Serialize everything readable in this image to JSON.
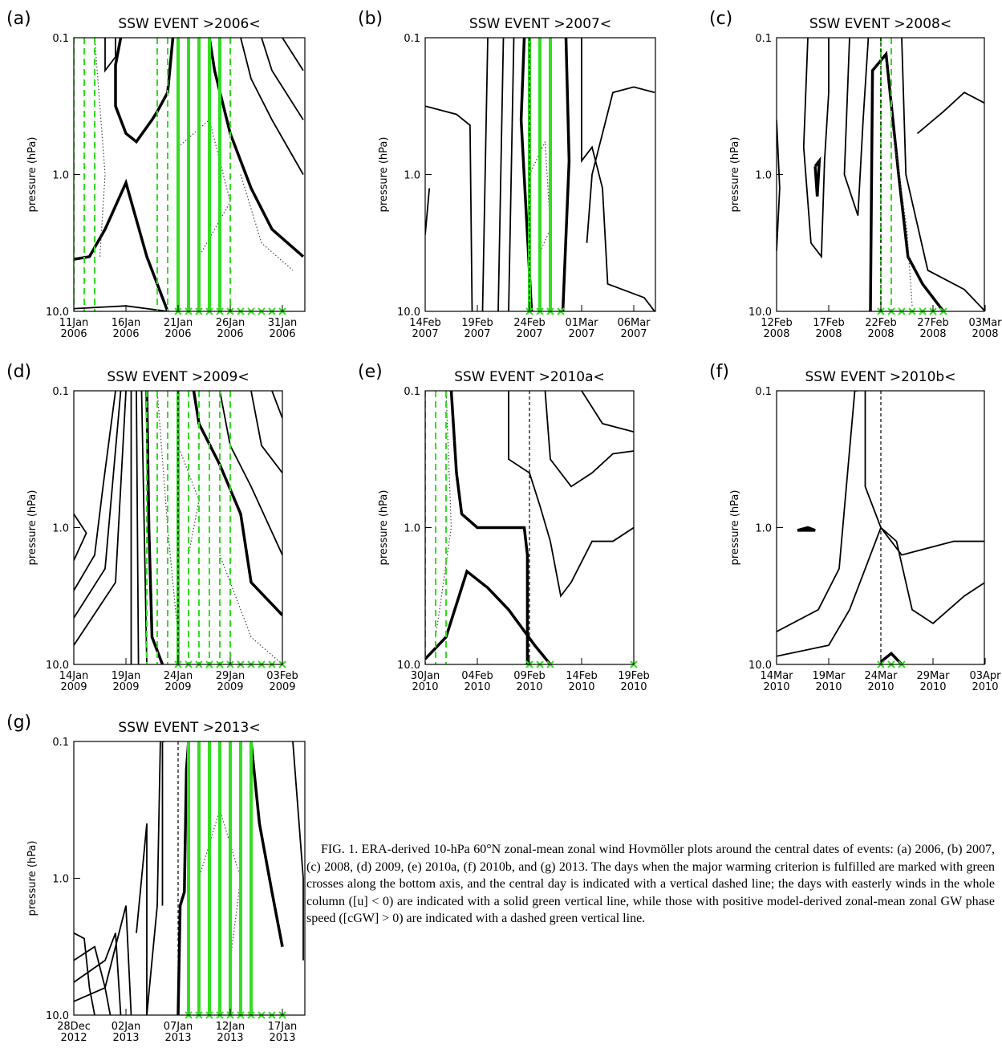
{
  "panels": [
    {
      "label": "(a)",
      "title": "SSW EVENT >2006<",
      "y_axis_label": "pressure (hPa)",
      "y_ticks": [
        "0.1",
        "1.0",
        "10.0"
      ],
      "x_ticks": [
        {
          "day": "11Jan",
          "year": "2006"
        },
        {
          "day": "16Jan",
          "year": "2006"
        },
        {
          "day": "21Jan",
          "year": "2006"
        },
        {
          "day": "26Jan",
          "year": "2006"
        },
        {
          "day": "31Jan",
          "year": "2006"
        }
      ]
    },
    {
      "label": "(b)",
      "title": "SSW EVENT >2007<",
      "y_axis_label": "pressure (hPa)",
      "y_ticks": [
        "0.1",
        "1.0",
        "10.0"
      ],
      "x_ticks": [
        {
          "day": "14Feb",
          "year": "2007"
        },
        {
          "day": "19Feb",
          "year": "2007"
        },
        {
          "day": "24Feb",
          "year": "2007"
        },
        {
          "day": "01Mar",
          "year": "2007"
        },
        {
          "day": "06Mar",
          "year": "2007"
        }
      ]
    },
    {
      "label": "(c)",
      "title": "SSW EVENT >2008<",
      "y_axis_label": "pressure (hPa)",
      "y_ticks": [
        "0.1",
        "1.0",
        "10.0"
      ],
      "x_ticks": [
        {
          "day": "12Feb",
          "year": "2008"
        },
        {
          "day": "17Feb",
          "year": "2008"
        },
        {
          "day": "22Feb",
          "year": "2008"
        },
        {
          "day": "27Feb",
          "year": "2008"
        },
        {
          "day": "03Mar",
          "year": "2008"
        }
      ]
    },
    {
      "label": "(d)",
      "title": "SSW EVENT >2009<",
      "y_axis_label": "pressure (hPa)",
      "y_ticks": [
        "0.1",
        "1.0",
        "10.0"
      ],
      "x_ticks": [
        {
          "day": "14Jan",
          "year": "2009"
        },
        {
          "day": "19Jan",
          "year": "2009"
        },
        {
          "day": "24Jan",
          "year": "2009"
        },
        {
          "day": "29Jan",
          "year": "2009"
        },
        {
          "day": "03Feb",
          "year": "2009"
        }
      ]
    },
    {
      "label": "(e)",
      "title": "SSW EVENT >2010a<",
      "y_axis_label": "pressure (hPa)",
      "y_ticks": [
        "0.1",
        "1.0",
        "10.0"
      ],
      "x_ticks": [
        {
          "day": "30Jan",
          "year": "2010"
        },
        {
          "day": "04Feb",
          "year": "2010"
        },
        {
          "day": "09Feb",
          "year": "2010"
        },
        {
          "day": "14Feb",
          "year": "2010"
        },
        {
          "day": "19Feb",
          "year": "2010"
        }
      ]
    },
    {
      "label": "(f)",
      "title": "SSW EVENT >2010b<",
      "y_axis_label": "pressure (hPa)",
      "y_ticks": [
        "0.1",
        "1.0",
        "10.0"
      ],
      "x_ticks": [
        {
          "day": "14Mar",
          "year": "2010"
        },
        {
          "day": "19Mar",
          "year": "2010"
        },
        {
          "day": "24Mar",
          "year": "2010"
        },
        {
          "day": "29Mar",
          "year": "2010"
        },
        {
          "day": "03Apr",
          "year": "2010"
        }
      ]
    },
    {
      "label": "(g)",
      "title": "SSW EVENT >2013<",
      "y_axis_label": "pressure (hPa)",
      "y_ticks": [
        "0.1",
        "1.0",
        "10.0"
      ],
      "x_ticks": [
        {
          "day": "28Dec",
          "year": "2012"
        },
        {
          "day": "02Jan",
          "year": "2013"
        },
        {
          "day": "07Jan",
          "year": "2013"
        },
        {
          "day": "12Jan",
          "year": "2013"
        },
        {
          "day": "17Jan",
          "year": "2013"
        }
      ]
    }
  ],
  "caption": "FIG. 1. ERA-derived 10-hPa 60°N zonal-mean zonal wind Hovmöller plots around the central dates of events: (a) 2006, (b) 2007, (c) 2008, (d) 2009, (e) 2010a, (f) 2010b, and (g) 2013. The days when the major warming criterion is fulfilled are marked with green crosses along the bottom axis, and the central day is indicated with a vertical dashed line; the days with easterly winds in the whole column ([u] < 0) are indicated with a solid green vertical line, while those with positive model-derived zonal-mean zonal GW phase speed ([cGW] > 0) are indicated with a dashed green vertical line."
}
